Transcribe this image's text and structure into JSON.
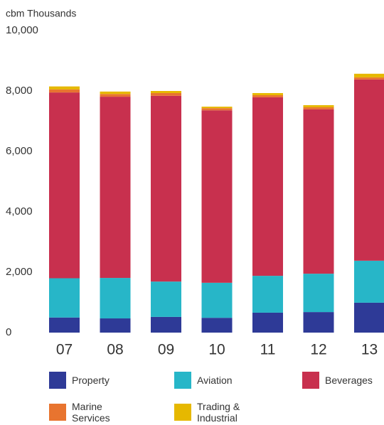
{
  "chart_data": {
    "type": "stacked_bar",
    "title": "cbm Thousands",
    "categories": [
      "07",
      "08",
      "09",
      "10",
      "11",
      "12",
      "13"
    ],
    "series": [
      {
        "name": "Property",
        "color": "#2e3a97",
        "values": [
          500,
          470,
          520,
          490,
          660,
          680,
          990
        ]
      },
      {
        "name": "Aviation",
        "color": "#27b6c8",
        "values": [
          1300,
          1340,
          1170,
          1160,
          1220,
          1270,
          1390
        ]
      },
      {
        "name": "Beverages",
        "color": "#c8304e",
        "values": [
          6150,
          6000,
          6150,
          5710,
          5910,
          5440,
          6000
        ]
      },
      {
        "name": "Marine Services",
        "color": "#e8742f",
        "values": [
          100,
          90,
          90,
          70,
          70,
          70,
          70
        ]
      },
      {
        "name": "Trading & Industrial",
        "color": "#e6b800",
        "values": [
          100,
          80,
          70,
          50,
          70,
          70,
          120
        ]
      }
    ],
    "ylim": [
      0,
      10000
    ],
    "yticks": [
      0,
      {
        "value": 2000,
        "label": "2,000"
      },
      {
        "value": 4000,
        "label": "4,000"
      },
      {
        "value": 6000,
        "label": "6,000"
      },
      {
        "value": 8000,
        "label": "8,000"
      },
      {
        "value": 10000,
        "label": "10,000"
      }
    ],
    "grid": false,
    "legend": "bottom"
  }
}
